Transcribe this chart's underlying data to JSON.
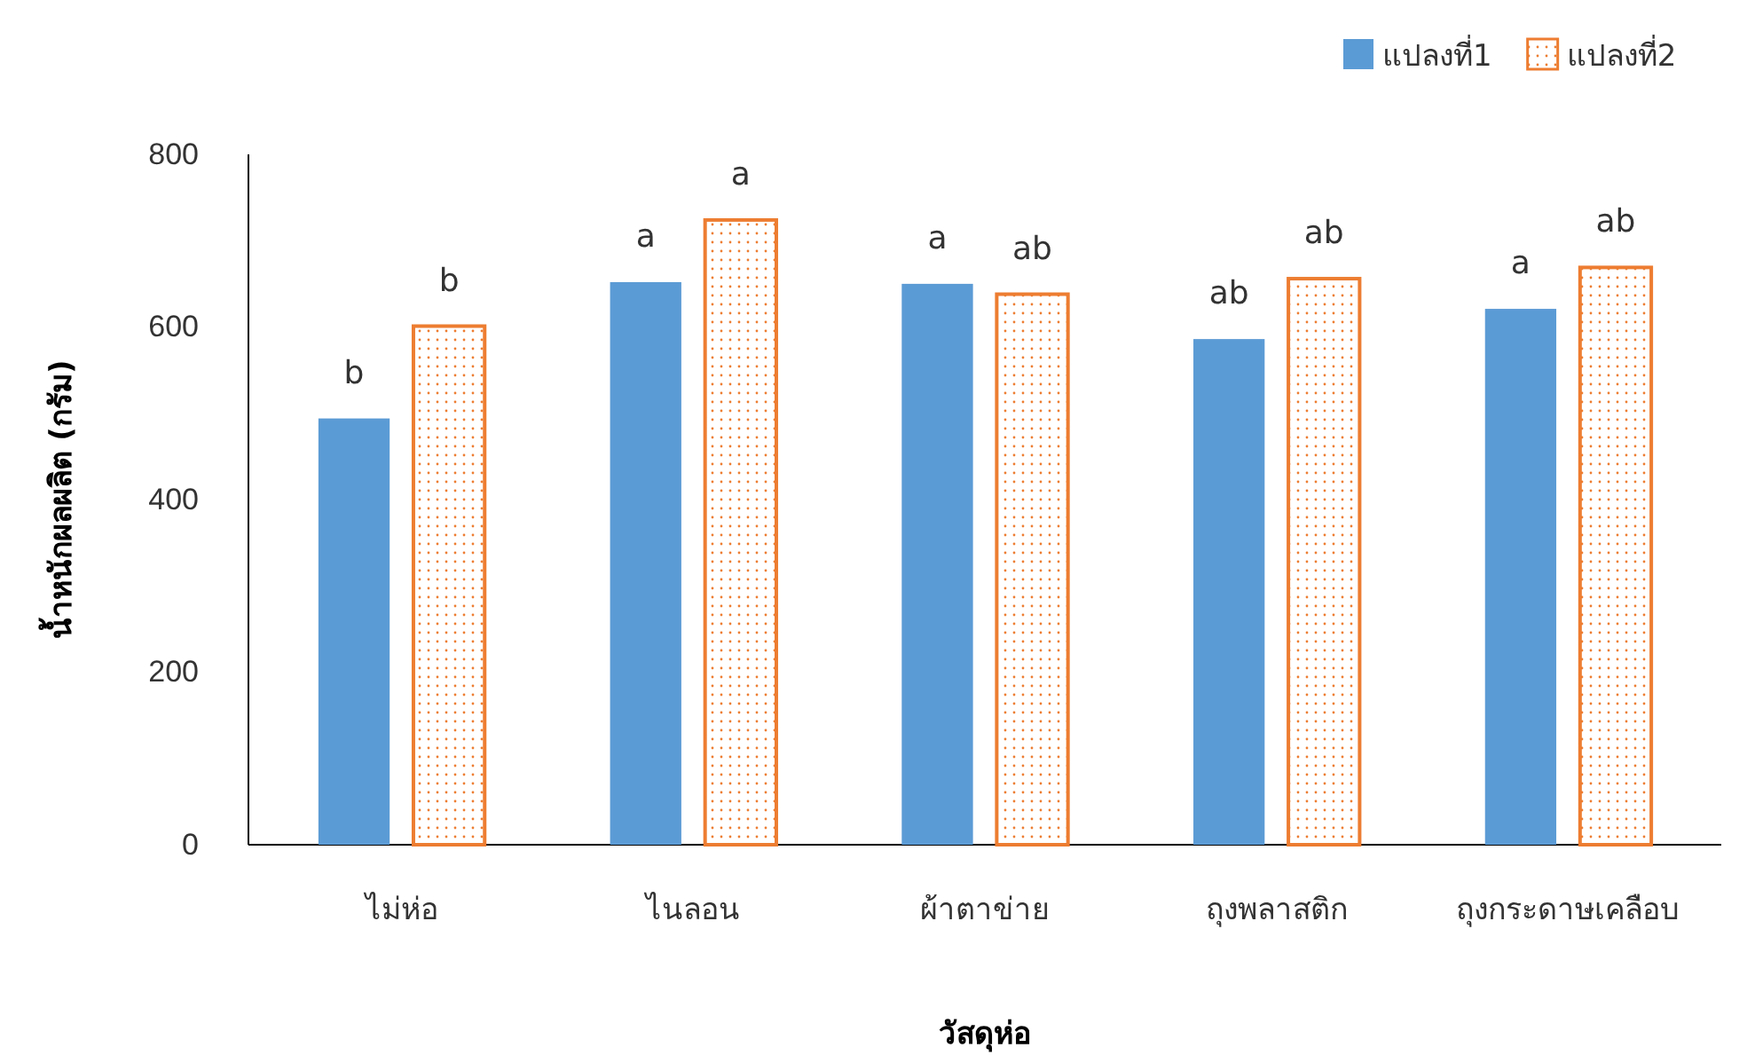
{
  "chart_data": {
    "type": "bar",
    "xlabel": "วัสดุห่อ",
    "ylabel": "น้ำหนักผลผลิต (กรัม)",
    "categories": [
      "ไม่ห่อ",
      "ไนลอน",
      "ผ้าตาข่าย",
      "ถุงพลาสติก",
      "ถุงกระดาษเคลือบ"
    ],
    "series": [
      {
        "name": "แปลงที่1",
        "color": "#5b9bd5",
        "values": [
          494,
          652,
          650,
          586,
          621
        ],
        "value_labels": [
          "b",
          "a",
          "a",
          "ab",
          "a"
        ]
      },
      {
        "name": "แปลงที่2",
        "color": "#ed7d31",
        "values": [
          601,
          724,
          638,
          656,
          669
        ],
        "value_labels": [
          "b",
          "a",
          "ab",
          "ab",
          "ab"
        ]
      }
    ],
    "ylim": [
      0,
      800
    ],
    "yticks": [
      0,
      200,
      400,
      600,
      800
    ],
    "grid": false,
    "legend": "top right"
  }
}
